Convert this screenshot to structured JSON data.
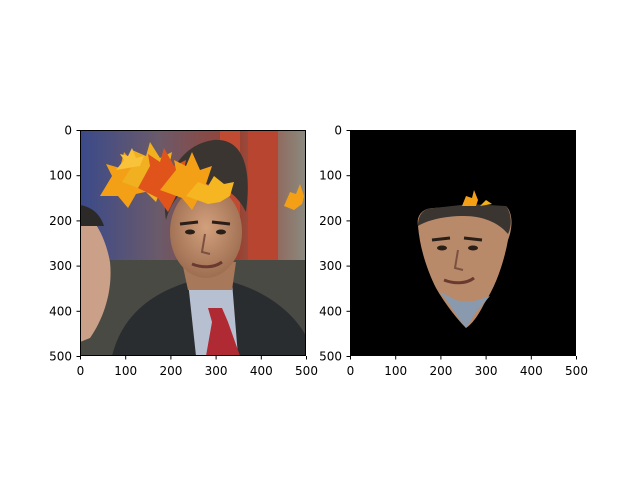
{
  "figure": {
    "background": "#ffffff",
    "panels": [
      {
        "id": "left",
        "content": "photo of man in dark suit with red tie, autumn maple leaves overlay near head, second face at left edge",
        "x_ticks": [
          "0",
          "100",
          "200",
          "300",
          "400",
          "500"
        ],
        "y_ticks": [
          "0",
          "100",
          "200",
          "300",
          "400",
          "500"
        ],
        "xlim": [
          0,
          500
        ],
        "ylim": [
          500,
          0
        ]
      },
      {
        "id": "right",
        "content": "face region segmented on black background with small leaf fragment",
        "x_ticks": [
          "0",
          "100",
          "200",
          "300",
          "400",
          "500"
        ],
        "y_ticks": [
          "0",
          "100",
          "200",
          "300",
          "400",
          "500"
        ],
        "xlim": [
          0,
          500
        ],
        "ylim": [
          500,
          0
        ]
      }
    ],
    "colors": {
      "leaf_orange": "#f4a016",
      "leaf_red": "#e0541c",
      "suit": "#2a2d30",
      "tie": "#b02a34",
      "skin": "#c89572",
      "hair": "#3a3530",
      "mask_background": "#000000"
    }
  }
}
